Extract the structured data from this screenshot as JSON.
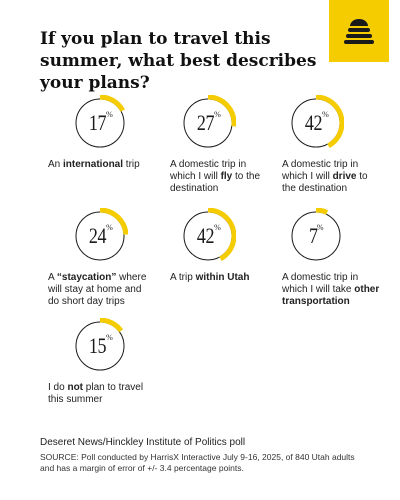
{
  "title": "If you plan to travel this summer, what best describes your plans?",
  "colors": {
    "accent": "#f5cc00",
    "ring": "#1a1a1a",
    "logo_bg": "#f5cc00"
  },
  "logo_icon": "beehive-icon",
  "chart_data": {
    "type": "donut",
    "title": "If you plan to travel this summer, what best describes your plans?",
    "unit": "%",
    "items": [
      {
        "value": 17,
        "label_parts": [
          {
            "t": "An "
          },
          {
            "t": "international",
            "b": true
          },
          {
            "t": " trip"
          }
        ]
      },
      {
        "value": 27,
        "label_parts": [
          {
            "t": "A domestic trip in which I will "
          },
          {
            "t": "fly",
            "b": true
          },
          {
            "t": " to the destination"
          }
        ]
      },
      {
        "value": 42,
        "label_parts": [
          {
            "t": "A domestic trip in which I will "
          },
          {
            "t": "drive",
            "b": true
          },
          {
            "t": " to the destination"
          }
        ]
      },
      {
        "value": 24,
        "label_parts": [
          {
            "t": "A "
          },
          {
            "t": "“staycation”",
            "b": true
          },
          {
            "t": " where will stay at home and do short day trips"
          }
        ]
      },
      {
        "value": 42,
        "label_parts": [
          {
            "t": "A trip "
          },
          {
            "t": "within Utah",
            "b": true
          }
        ]
      },
      {
        "value": 7,
        "label_parts": [
          {
            "t": "A domestic trip in which I will take "
          },
          {
            "t": "other transportation",
            "b": true
          }
        ]
      },
      {
        "value": 15,
        "label_parts": [
          {
            "t": "I do "
          },
          {
            "t": "not",
            "b": true
          },
          {
            "t": " plan to travel this summer"
          }
        ]
      }
    ]
  },
  "credit": "Deseret News/Hinckley Institute of Politics poll",
  "source": "SOURCE: Poll conducted by HarrisX Interactive July 9-16, 2025, of 840 Utah adults and has a margin of error of +/- 3.4 percentage points."
}
